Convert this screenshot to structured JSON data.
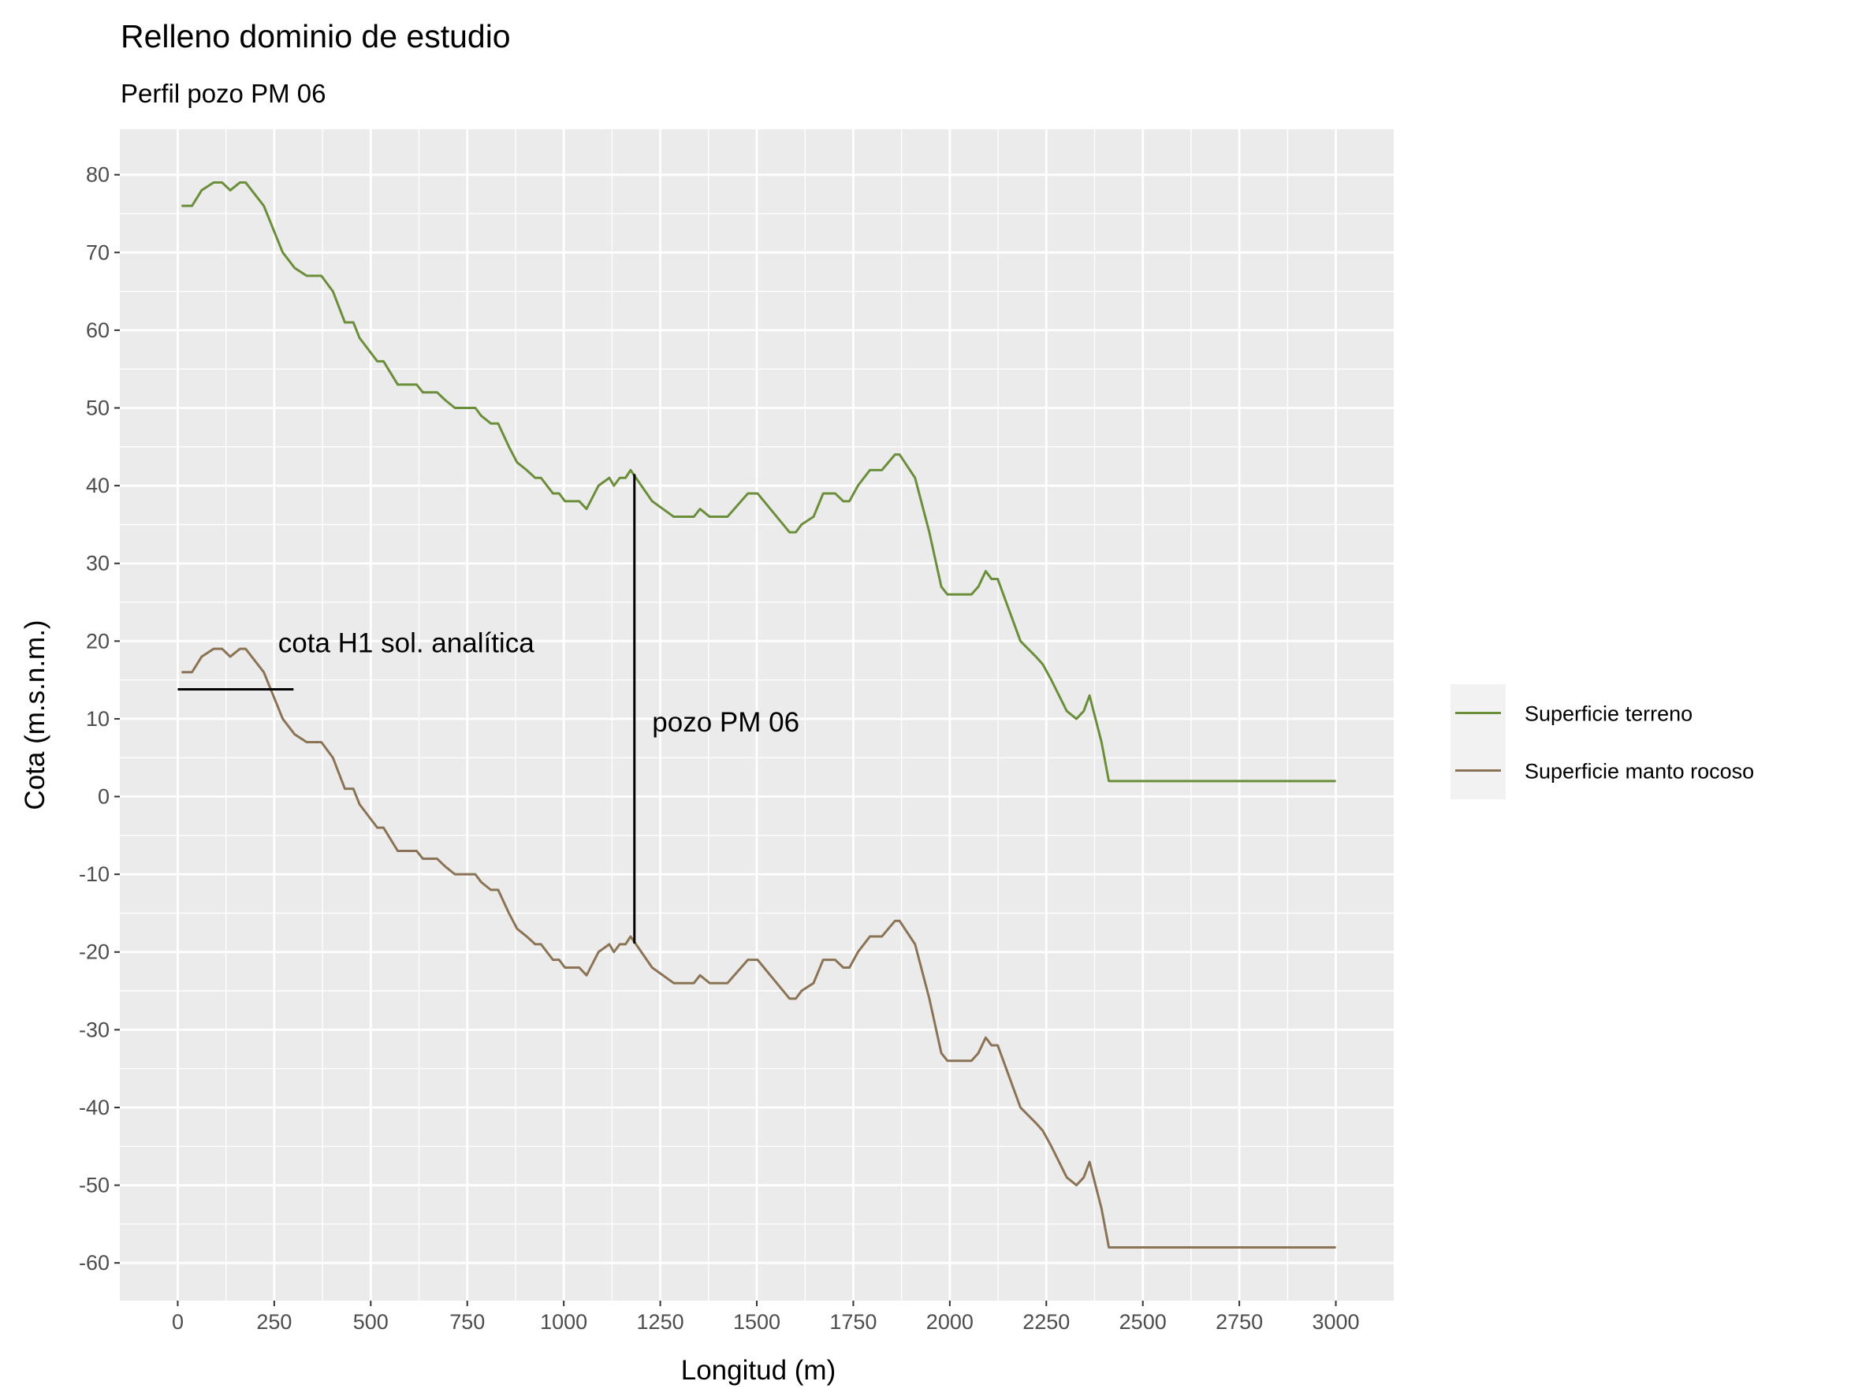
{
  "chart_data": {
    "type": "line",
    "title": "Relleno dominio de estudio",
    "subtitle": "Perfil pozo PM 06",
    "x_label": "Longitud (m)",
    "y_label": "Cota (m.s.n.m.)",
    "x": [
      10,
      37,
      62,
      93,
      115,
      136,
      161,
      176,
      223,
      272,
      303,
      334,
      372,
      402,
      433,
      455,
      471,
      517,
      533,
      570,
      619,
      635,
      672,
      693,
      718,
      771,
      786,
      811,
      830,
      858,
      879,
      904,
      926,
      941,
      972,
      988,
      1003,
      1040,
      1059,
      1090,
      1118,
      1130,
      1145,
      1160,
      1173,
      1229,
      1285,
      1337,
      1353,
      1378,
      1424,
      1477,
      1502,
      1585,
      1601,
      1616,
      1647,
      1672,
      1703,
      1724,
      1740,
      1762,
      1793,
      1824,
      1858,
      1870,
      1910,
      1947,
      1978,
      1994,
      2056,
      2074,
      2093,
      2108,
      2124,
      2183,
      2223,
      2241,
      2263,
      2303,
      2328,
      2347,
      2362,
      2393,
      2412,
      3000
    ],
    "series": [
      {
        "name": "Superficie terreno",
        "color": "#6b8e3a",
        "values": [
          76,
          76,
          78,
          79,
          79,
          78,
          79,
          79,
          76,
          70,
          68,
          67,
          67,
          65,
          61,
          61,
          59,
          56,
          56,
          53,
          53,
          52,
          52,
          51,
          50,
          50,
          49,
          48,
          48,
          45,
          43,
          42,
          41,
          41,
          39,
          39,
          38,
          38,
          37,
          40,
          41,
          40,
          41,
          41,
          42,
          38,
          36,
          36,
          37,
          36,
          36,
          39,
          39,
          34,
          34,
          35,
          36,
          39,
          39,
          38,
          38,
          40,
          42,
          42,
          44,
          44,
          41,
          34,
          27,
          26,
          26,
          27,
          29,
          28,
          28,
          20,
          18,
          17,
          15,
          11,
          10,
          11,
          13,
          7,
          2,
          2
        ]
      },
      {
        "name": "Superficie manto rocoso",
        "color": "#8b7355",
        "values": [
          16,
          16,
          18,
          19,
          19,
          18,
          19,
          19,
          16,
          10,
          8,
          7,
          7,
          5,
          1,
          1,
          -1,
          -4,
          -4,
          -7,
          -7,
          -8,
          -8,
          -9,
          -10,
          -10,
          -11,
          -12,
          -12,
          -15,
          -17,
          -18,
          -19,
          -19,
          -21,
          -21,
          -22,
          -22,
          -23,
          -20,
          -19,
          -20,
          -19,
          -19,
          -18,
          -22,
          -24,
          -24,
          -23,
          -24,
          -24,
          -21,
          -21,
          -26,
          -26,
          -25,
          -24,
          -21,
          -21,
          -22,
          -22,
          -20,
          -18,
          -18,
          -16,
          -16,
          -19,
          -26,
          -33,
          -34,
          -34,
          -33,
          -31,
          -32,
          -32,
          -40,
          -42,
          -43,
          -45,
          -49,
          -50,
          -49,
          -47,
          -53,
          -58,
          -58
        ]
      }
    ],
    "segments": [
      {
        "x": [
          0,
          300
        ],
        "y": [
          13.8,
          13.8
        ]
      },
      {
        "x": [
          1183,
          1183
        ],
        "y": [
          -18.9,
          41.5
        ]
      }
    ],
    "annotations": [
      {
        "text": "cota H1 sol. analítica",
        "x": 260,
        "y": 19.8
      },
      {
        "text": "pozo PM 06",
        "x": 1229,
        "y": 9.6
      }
    ],
    "xlim": [
      -150,
      3150
    ],
    "ylim": [
      -64.85,
      85.85
    ],
    "xticks": [
      0,
      250,
      500,
      750,
      1000,
      1250,
      1500,
      1750,
      2000,
      2250,
      2500,
      2750,
      3000
    ],
    "yticks": [
      -60,
      -50,
      -40,
      -30,
      -20,
      -10,
      0,
      10,
      20,
      30,
      40,
      50,
      60,
      70,
      80
    ],
    "grid": true,
    "legend": "right"
  }
}
